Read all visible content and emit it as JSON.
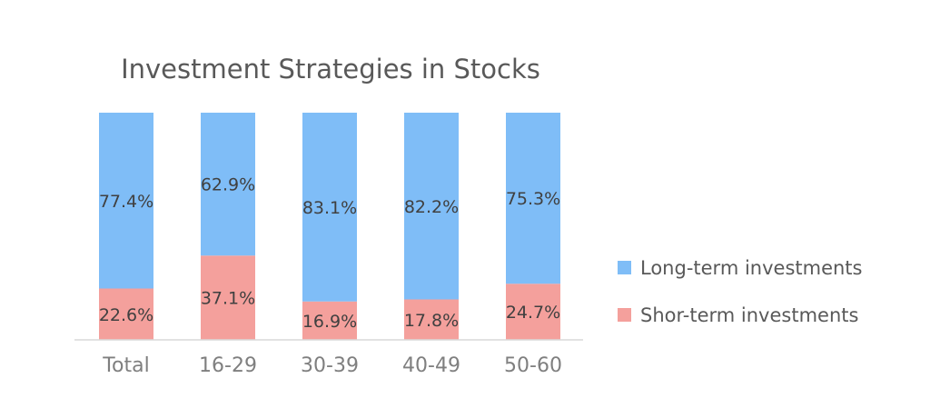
{
  "chart_data": {
    "type": "bar",
    "stacked": true,
    "title": "Investment Strategies in Stocks",
    "xlabel": "",
    "ylabel": "",
    "ylim": [
      0,
      100
    ],
    "categories": [
      "Total",
      "16-29",
      "30-39",
      "40-49",
      "50-60"
    ],
    "series": [
      {
        "name": "Shor-term investments",
        "values": [
          22.6,
          37.1,
          16.9,
          17.8,
          24.7
        ],
        "labels": [
          "22.6%",
          "37.1%",
          "16.9%",
          "17.8%",
          "24.7%"
        ],
        "color": "#f4a09c"
      },
      {
        "name": "Long-term investments",
        "values": [
          77.4,
          62.9,
          83.1,
          82.2,
          75.3
        ],
        "labels": [
          "77.4%",
          "62.9%",
          "83.1%",
          "82.2%",
          "75.3%"
        ],
        "color": "#7fbdf7"
      }
    ],
    "legend": {
      "position": "right",
      "order": [
        "Long-term investments",
        "Shor-term investments"
      ]
    },
    "grid": false,
    "axis_color": "#d9d9d9"
  }
}
